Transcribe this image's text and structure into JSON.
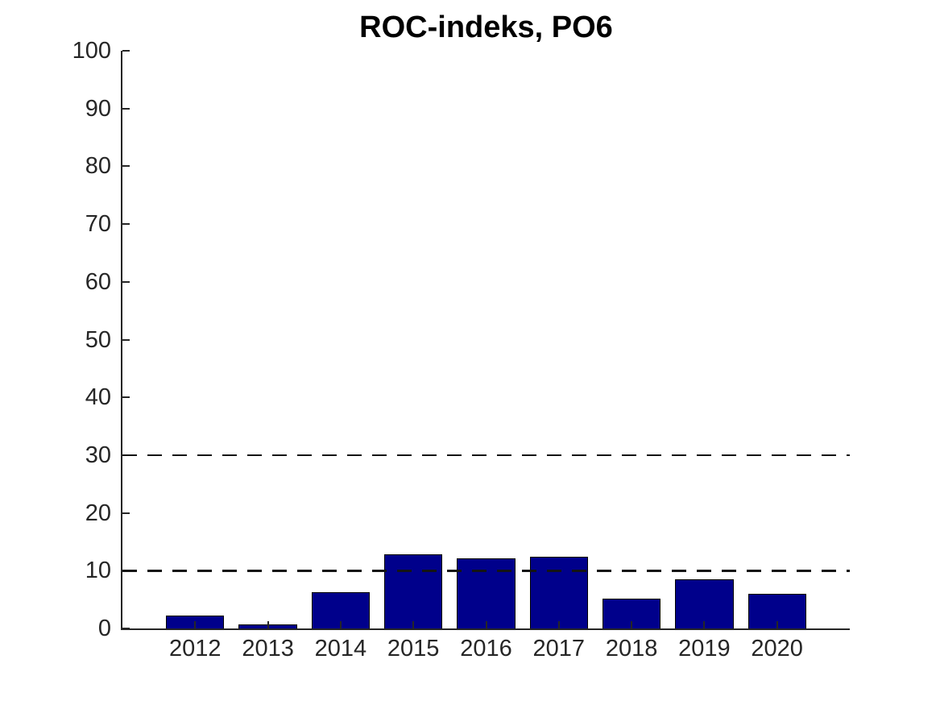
{
  "chart_data": {
    "type": "bar",
    "title": "ROC-indeks, PO6",
    "categories": [
      "2012",
      "2013",
      "2014",
      "2015",
      "2016",
      "2017",
      "2018",
      "2019",
      "2020"
    ],
    "values": [
      2.3,
      0.7,
      6.3,
      12.8,
      12.2,
      12.4,
      5.1,
      8.5,
      6.0
    ],
    "xlabel": "",
    "ylabel": "",
    "ylim": [
      0,
      100
    ],
    "yticks": [
      0,
      10,
      20,
      30,
      40,
      50,
      60,
      70,
      80,
      90,
      100
    ],
    "reference_lines": [
      {
        "y": 10,
        "style": "dashed",
        "color": "#141414"
      },
      {
        "y": 30,
        "style": "dashed",
        "color": "#141414"
      }
    ],
    "bar_color": "#00008B",
    "bar_edge_color": "#000000",
    "bar_width_fraction": 0.8,
    "axis_color": "#262626",
    "tick_label_color": "#262626",
    "title_color": "#000000",
    "grid": false,
    "legend_visible": false
  }
}
